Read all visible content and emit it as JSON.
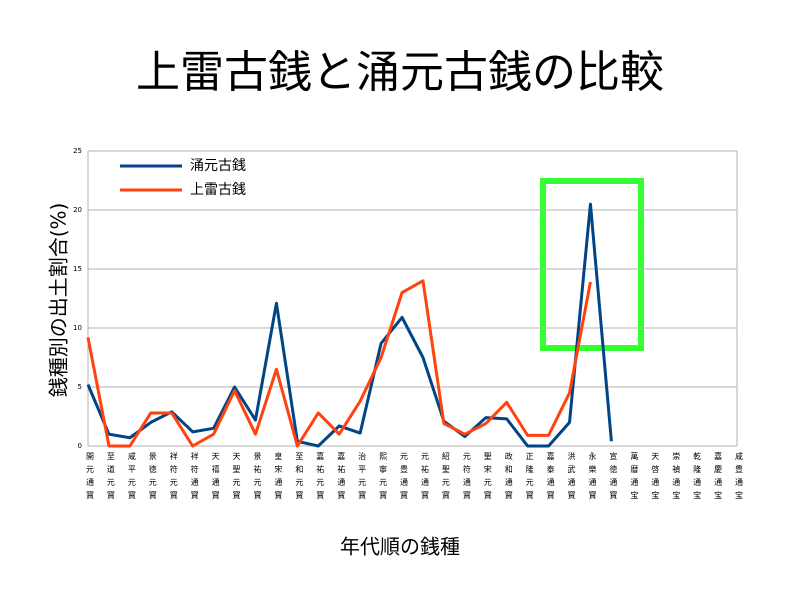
{
  "chart_data": {
    "type": "line",
    "title": "上雷古銭と涌元古銭の比較",
    "x_label": "年代順の銭種",
    "y_label": "銭種別の出土割合(%)",
    "categories": [
      "開元通寳",
      "至道元寳",
      "咸平元寳",
      "景徳元寳",
      "祥符元寳",
      "祥符通寳",
      "天禧通寳",
      "天聖元寳",
      "景祐元寳",
      "皇宋通寳",
      "至和元寳",
      "嘉祐元寳",
      "嘉祐通寳",
      "治平元寳",
      "熙寧元寳",
      "元豊通寳",
      "元祐通寳",
      "紹聖元寳",
      "元符通寳",
      "聖宋元寳",
      "政和通寳",
      "正隆元寳",
      "嘉泰通寳",
      "洪武通寳",
      "永樂通寳",
      "宣徳通寳",
      "萬暦通宝",
      "天啓通宝",
      "崇禎通宝",
      "乾隆通宝",
      "嘉慶通宝",
      "咸豊通宝"
    ],
    "series": [
      {
        "name": "涌元古銭",
        "color": "#004586",
        "values": [
          5.2,
          1.0,
          0.7,
          2.0,
          2.9,
          1.2,
          1.5,
          5.0,
          2.2,
          12.1,
          0.4,
          0,
          1.7,
          1.1,
          8.7,
          10.9,
          7.5,
          2.1,
          0.8,
          2.4,
          2.3,
          0,
          0,
          2.0,
          20.5,
          0.4,
          null,
          null,
          null,
          null,
          null,
          null
        ]
      },
      {
        "name": "上雷古銭",
        "color": "#ff420e",
        "values": [
          9.2,
          0,
          0,
          2.8,
          2.8,
          0,
          1.0,
          4.7,
          1.0,
          6.5,
          0,
          2.8,
          1.0,
          3.8,
          7.5,
          13.0,
          14.0,
          1.9,
          1.0,
          1.9,
          3.7,
          0.9,
          0.9,
          4.5,
          13.9,
          null,
          null,
          null,
          null,
          null,
          null,
          null
        ]
      }
    ],
    "ylim": [
      0,
      25
    ],
    "yticks": [
      0,
      5,
      10,
      15,
      20,
      25
    ],
    "grid": true,
    "legend": "upper left"
  }
}
